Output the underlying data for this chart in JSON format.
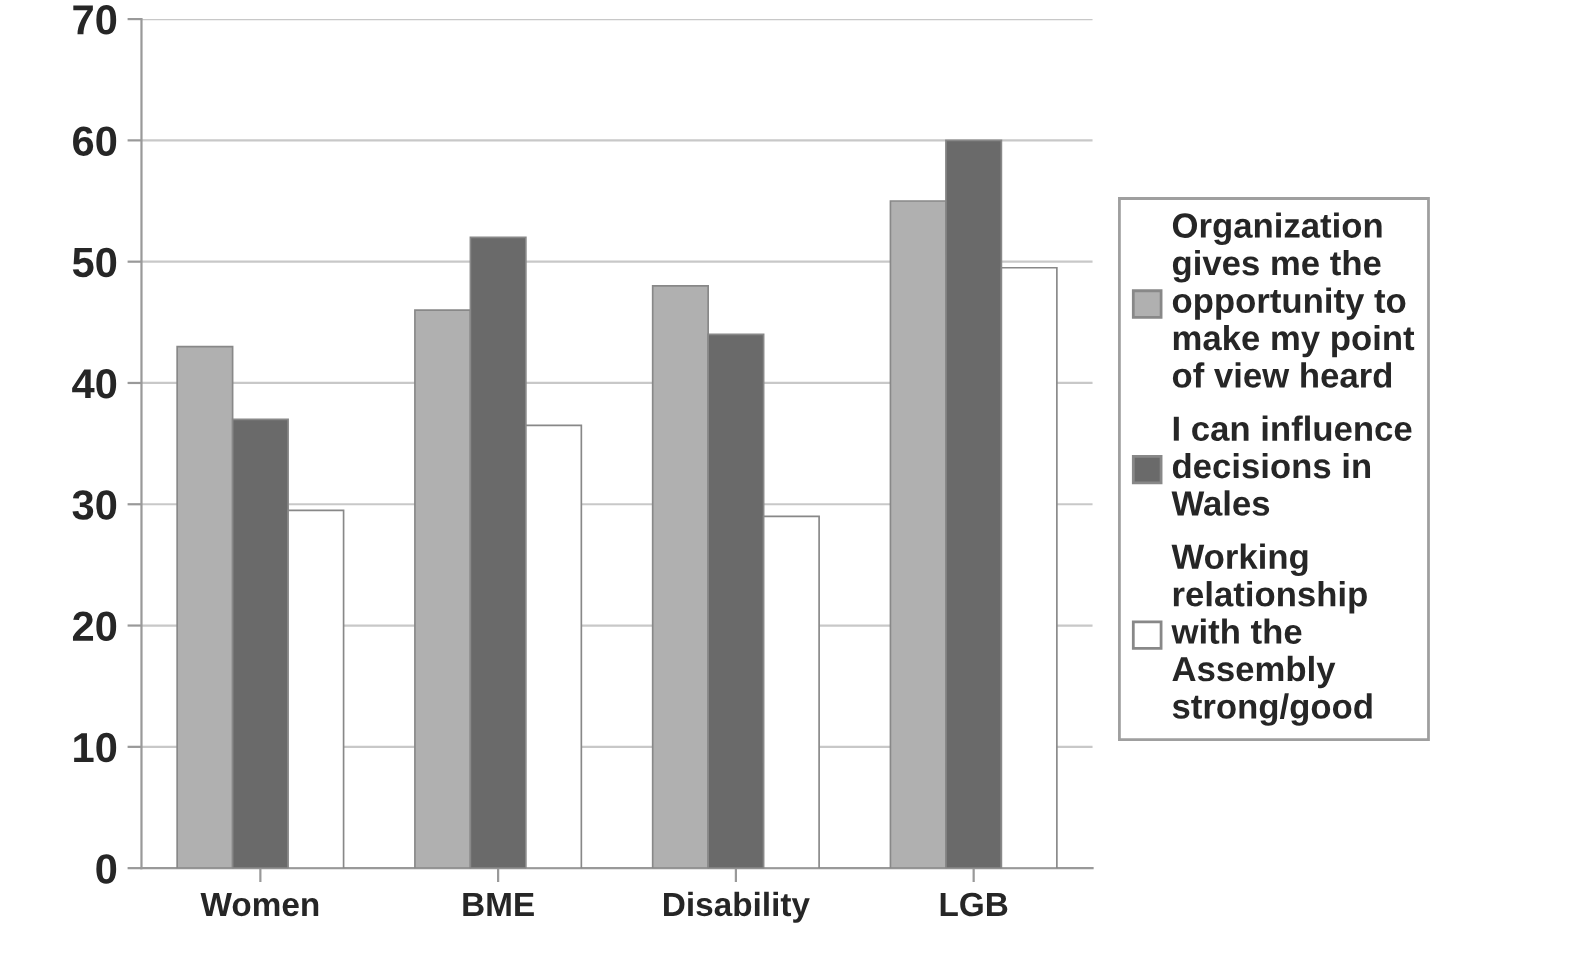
{
  "chart_data": {
    "type": "bar",
    "categories": [
      "Women",
      "BME",
      "Disability",
      "LGB"
    ],
    "series": [
      {
        "name": "Organization\ngives me the\nopportunity to\nmake my point\nof view heard",
        "color": "#b0b0b0",
        "values": [
          43,
          46,
          48,
          55
        ]
      },
      {
        "name": "I can influence\ndecisions in\nWales",
        "color": "#6a6a6a",
        "values": [
          37,
          52,
          44,
          60
        ]
      },
      {
        "name": "Working\nrelationship\nwith the\nAssembly\nstrong/good",
        "color": "#ffffff",
        "values": [
          29.5,
          36.5,
          29,
          49.5
        ]
      }
    ],
    "ylim": [
      0,
      70
    ],
    "yticks": [
      0,
      10,
      20,
      30,
      40,
      50,
      60,
      70
    ],
    "grid": "y",
    "legend": "right"
  }
}
